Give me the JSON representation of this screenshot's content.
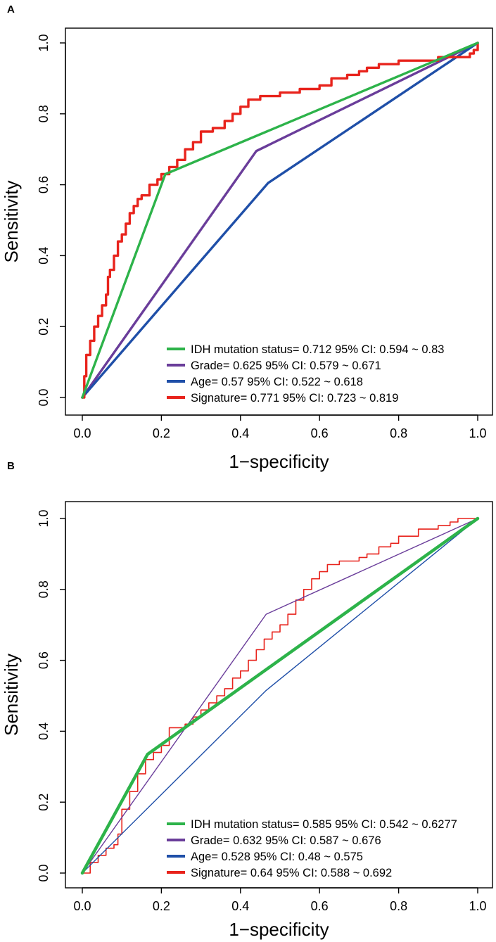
{
  "chart_data": [
    {
      "panel_label": "A",
      "type": "line",
      "xlabel": "1−specificity",
      "ylabel": "Sensitivity",
      "xlim": [
        0,
        1
      ],
      "ylim": [
        0,
        1
      ],
      "xticks": [
        0.0,
        0.2,
        0.4,
        0.6,
        0.8,
        1.0
      ],
      "yticks": [
        0.0,
        0.2,
        0.4,
        0.6,
        0.8,
        1.0
      ],
      "tick_labels": [
        "0.0",
        "0.2",
        "0.4",
        "0.6",
        "0.8",
        "1.0"
      ],
      "grid": false,
      "legend_position": "bottom-right",
      "series": [
        {
          "name": "IDH mutation status= 0.712  95% CI: 0.594 ~ 0.83",
          "color": "#2db34a",
          "x": [
            0,
            0.21,
            1
          ],
          "y": [
            0,
            0.63,
            1
          ]
        },
        {
          "name": "Grade= 0.625  95% CI: 0.579 ~ 0.671",
          "color": "#6a3d9a",
          "x": [
            0,
            0.44,
            1
          ],
          "y": [
            0,
            0.695,
            1
          ]
        },
        {
          "name": "Age= 0.57  95% CI: 0.522 ~ 0.618",
          "color": "#1f4fa8",
          "x": [
            0,
            0.47,
            1
          ],
          "y": [
            0,
            0.605,
            1
          ]
        },
        {
          "name": "Signature= 0.771  95% CI: 0.723 ~ 0.819",
          "color": "#e8231c",
          "x": [
            0,
            0.005,
            0.01,
            0.02,
            0.03,
            0.04,
            0.05,
            0.06,
            0.065,
            0.07,
            0.08,
            0.09,
            0.1,
            0.11,
            0.12,
            0.13,
            0.14,
            0.15,
            0.17,
            0.19,
            0.2,
            0.22,
            0.24,
            0.26,
            0.28,
            0.3,
            0.33,
            0.36,
            0.38,
            0.4,
            0.42,
            0.45,
            0.5,
            0.55,
            0.6,
            0.63,
            0.67,
            0.7,
            0.72,
            0.75,
            0.8,
            0.85,
            0.9,
            0.93,
            0.95,
            0.97,
            0.98,
            0.99,
            1
          ],
          "y": [
            0,
            0.06,
            0.12,
            0.16,
            0.2,
            0.23,
            0.26,
            0.29,
            0.34,
            0.36,
            0.4,
            0.44,
            0.46,
            0.49,
            0.52,
            0.54,
            0.56,
            0.57,
            0.6,
            0.615,
            0.63,
            0.65,
            0.67,
            0.7,
            0.72,
            0.75,
            0.76,
            0.78,
            0.8,
            0.82,
            0.84,
            0.85,
            0.86,
            0.87,
            0.88,
            0.9,
            0.91,
            0.92,
            0.93,
            0.94,
            0.95,
            0.95,
            0.96,
            0.96,
            0.96,
            0.96,
            0.97,
            0.98,
            1
          ]
        }
      ]
    },
    {
      "panel_label": "B",
      "type": "line",
      "xlabel": "1−specificity",
      "ylabel": "Sensitivity",
      "xlim": [
        0,
        1
      ],
      "ylim": [
        0,
        1
      ],
      "xticks": [
        0.0,
        0.2,
        0.4,
        0.6,
        0.8,
        1.0
      ],
      "yticks": [
        0.0,
        0.2,
        0.4,
        0.6,
        0.8,
        1.0
      ],
      "tick_labels": [
        "0.0",
        "0.2",
        "0.4",
        "0.6",
        "0.8",
        "1.0"
      ],
      "grid": false,
      "legend_position": "bottom-right",
      "series": [
        {
          "name": "IDH mutation status= 0.585  95% CI: 0.542 ~ 0.6277",
          "color": "#2db34a",
          "x": [
            0,
            0.165,
            1
          ],
          "y": [
            0,
            0.335,
            1
          ]
        },
        {
          "name": "Grade= 0.632  95% CI: 0.587 ~ 0.676",
          "color": "#6a3d9a",
          "x": [
            0,
            0.465,
            1
          ],
          "y": [
            0,
            0.73,
            1
          ]
        },
        {
          "name": "Age= 0.528  95% CI: 0.48 ~ 0.575",
          "color": "#1f4fa8",
          "x": [
            0,
            0.465,
            1
          ],
          "y": [
            0,
            0.515,
            1
          ]
        },
        {
          "name": "Signature= 0.64  95% CI: 0.588 ~ 0.692",
          "color": "#e8231c",
          "x": [
            0,
            0.02,
            0.04,
            0.06,
            0.08,
            0.09,
            0.1,
            0.12,
            0.14,
            0.16,
            0.18,
            0.2,
            0.22,
            0.24,
            0.26,
            0.28,
            0.3,
            0.32,
            0.34,
            0.36,
            0.38,
            0.4,
            0.42,
            0.44,
            0.46,
            0.48,
            0.5,
            0.52,
            0.54,
            0.56,
            0.58,
            0.6,
            0.62,
            0.65,
            0.7,
            0.72,
            0.75,
            0.78,
            0.8,
            0.85,
            0.9,
            0.93,
            0.95,
            1
          ],
          "y": [
            0,
            0.03,
            0.05,
            0.07,
            0.08,
            0.11,
            0.18,
            0.23,
            0.28,
            0.32,
            0.34,
            0.36,
            0.41,
            0.41,
            0.42,
            0.44,
            0.46,
            0.48,
            0.5,
            0.52,
            0.55,
            0.57,
            0.6,
            0.63,
            0.66,
            0.68,
            0.7,
            0.73,
            0.77,
            0.8,
            0.83,
            0.85,
            0.87,
            0.88,
            0.89,
            0.9,
            0.92,
            0.93,
            0.95,
            0.97,
            0.98,
            0.99,
            1.0,
            1.0
          ]
        }
      ]
    }
  ]
}
